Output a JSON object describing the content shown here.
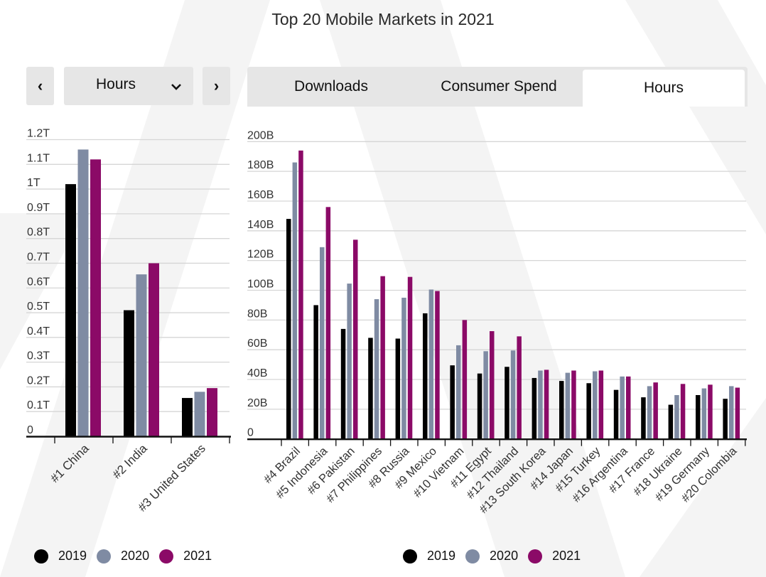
{
  "title": "Top 20 Mobile Markets in 2021",
  "controls": {
    "prev_icon": "chevron-left-icon",
    "prev_glyph": "‹",
    "next_icon": "chevron-right-icon",
    "next_glyph": "›",
    "dropdown_value": "Hours",
    "dropdown_icon": "chevron-down-icon",
    "dropdown_glyph": "⌄"
  },
  "tabs": [
    {
      "label": "Downloads",
      "active": false
    },
    {
      "label": "Consumer Spend",
      "active": false
    },
    {
      "label": "Hours",
      "active": true
    }
  ],
  "colors": {
    "2019": "#000000",
    "2020": "#7f8ba3",
    "2021": "#8b0a67",
    "grid": "#d6d6d6",
    "tab_bg": "#e6e6e6"
  },
  "legend_left": [
    {
      "label": "2019"
    },
    {
      "label": "2020"
    },
    {
      "label": "2021"
    }
  ],
  "legend_right": [
    {
      "label": "2019"
    },
    {
      "label": "2020"
    },
    {
      "label": "2021"
    }
  ],
  "chart_data": [
    {
      "type": "bar",
      "title": "",
      "xlabel": "",
      "ylabel": "",
      "ylim": [
        0,
        1.2
      ],
      "unit": "T",
      "yticks": [
        "0",
        "0.1T",
        "0.2T",
        "0.3T",
        "0.4T",
        "0.5T",
        "0.6T",
        "0.7T",
        "0.8T",
        "0.9T",
        "1T",
        "1.1T",
        "1.2T"
      ],
      "grid": true,
      "legend": "bottom-left",
      "categories": [
        "#1 China",
        "#2 India",
        "#3 United States"
      ],
      "series": [
        {
          "name": "2019",
          "values": [
            1.02,
            0.51,
            0.155
          ]
        },
        {
          "name": "2020",
          "values": [
            1.16,
            0.655,
            0.18
          ]
        },
        {
          "name": "2021",
          "values": [
            1.12,
            0.7,
            0.195
          ]
        }
      ]
    },
    {
      "type": "bar",
      "title": "",
      "xlabel": "",
      "ylabel": "",
      "ylim": [
        0,
        200
      ],
      "unit": "B",
      "yticks": [
        "0",
        "20B",
        "40B",
        "60B",
        "80B",
        "100B",
        "120B",
        "140B",
        "160B",
        "180B",
        "200B"
      ],
      "grid": true,
      "legend": "bottom-center",
      "categories": [
        "#4 Brazil",
        "#5 Indonesia",
        "#6 Pakistan",
        "#7 Philippines",
        "#8 Russia",
        "#9 Mexico",
        "#10 Vietnam",
        "#11 Egypt",
        "#12 Thailand",
        "#13 South Korea",
        "#14 Japan",
        "#15 Turkey",
        "#16 Argentina",
        "#17 France",
        "#18 Ukraine",
        "#19 Germany",
        "#20 Colombia"
      ],
      "series": [
        {
          "name": "2019",
          "values": [
            148,
            90,
            74,
            68,
            67.5,
            84.5,
            49.5,
            44,
            48.5,
            41,
            39,
            37.5,
            33,
            28,
            23,
            29.5,
            27
          ]
        },
        {
          "name": "2020",
          "values": [
            186,
            129,
            104.5,
            94,
            95,
            100.5,
            63,
            59,
            59.5,
            46,
            44.5,
            45.5,
            42,
            35.5,
            29.5,
            34,
            35.5
          ]
        },
        {
          "name": "2021",
          "values": [
            194,
            156,
            134,
            109.5,
            109,
            99.5,
            80,
            72.5,
            69,
            46.5,
            46,
            46,
            42,
            38,
            37,
            36.5,
            34.5
          ]
        }
      ]
    }
  ]
}
